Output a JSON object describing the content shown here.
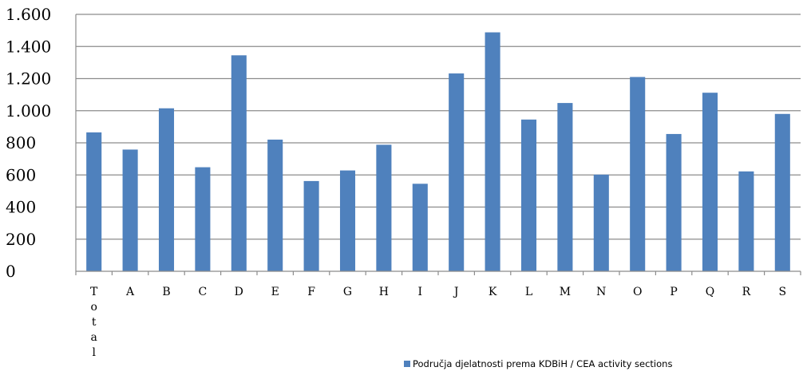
{
  "chart_data": {
    "type": "bar",
    "categories": [
      "Total",
      "A",
      "B",
      "C",
      "D",
      "E",
      "F",
      "G",
      "H",
      "I",
      "J",
      "K",
      "L",
      "M",
      "N",
      "O",
      "P",
      "Q",
      "R",
      "S"
    ],
    "series": [
      {
        "name": "Područja djelatnosti prema KDBiH / CEA activity sections",
        "values": [
          865,
          758,
          1015,
          648,
          1345,
          820,
          562,
          628,
          788,
          545,
          1232,
          1488,
          945,
          1048,
          602,
          1210,
          855,
          1112,
          622,
          980
        ]
      }
    ],
    "ylim": [
      0,
      1600
    ],
    "yticks": [
      0,
      200,
      400,
      600,
      800,
      1000,
      1200,
      1400,
      1600
    ],
    "ytick_labels": [
      "0",
      "200",
      "400",
      "600",
      "800",
      "1.000",
      "1.200",
      "1.400",
      "1.600"
    ],
    "grid": true,
    "legend_position": "bottom-right",
    "bar_color": "#4f81bd",
    "grid_color": "#8c8c8c"
  }
}
